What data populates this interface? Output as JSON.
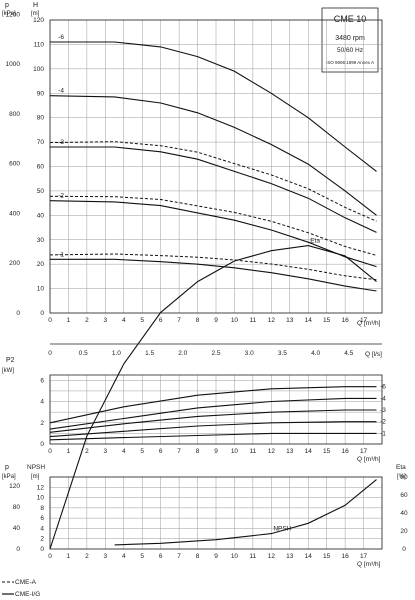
{
  "title_box": {
    "model": "CME 10",
    "speed": "3480 rpm",
    "freq": "50/60 Hz",
    "standard": "ISO 9906:1999 Annex A"
  },
  "axes": {
    "p_unit_top": "p",
    "p_unit_bottom": "[kPa]",
    "h_unit_top": "H",
    "h_unit_bottom": "[m]",
    "q_m3h": "Q [m³/h]",
    "q_ls": "Q [l/s]",
    "p2_top": "P2",
    "p2_bottom": "[kW]",
    "npsh_p_top": "p",
    "npsh_p_bottom": "[kPa]",
    "npsh_top": "NPSH",
    "npsh_bottom": "[m]",
    "eta_top": "Eta",
    "eta_bottom": "[%]"
  },
  "legend": {
    "dashed": "CME-A",
    "solid": "CME-I/G"
  },
  "labels": {
    "eta_curve": "Eta",
    "npsh_curve": "NPSH"
  },
  "ticks": {
    "q_m3h": [
      "0",
      "1",
      "2",
      "3",
      "4",
      "5",
      "6",
      "7",
      "8",
      "9",
      "10",
      "11",
      "12",
      "13",
      "14",
      "15",
      "16",
      "17"
    ],
    "q_ls": [
      "0",
      "0.5",
      "1.0",
      "1.5",
      "2.0",
      "2.5",
      "3.0",
      "3.5",
      "4.0",
      "4.5"
    ],
    "h_m": [
      "0",
      "10",
      "20",
      "30",
      "40",
      "50",
      "60",
      "70",
      "80",
      "90",
      "100",
      "110",
      "120"
    ],
    "p_kpa": [
      "0",
      "200",
      "400",
      "600",
      "800",
      "1000",
      "1200"
    ],
    "p2_kw": [
      "0",
      "2",
      "4",
      "6"
    ],
    "npsh_m": [
      "0",
      "2",
      "4",
      "6",
      "8",
      "10",
      "12"
    ],
    "npsh_p_kpa": [
      "0",
      "40",
      "80",
      "120"
    ],
    "eta_pct": [
      "0",
      "20",
      "40",
      "60",
      "80"
    ]
  },
  "chart_data": [
    {
      "type": "line",
      "title": "CME 10",
      "xlabel": "Q [m³/h]",
      "ylabel": "H [m]",
      "xlim": [
        0,
        18
      ],
      "ylim": [
        0,
        120
      ],
      "grid": true,
      "series": [
        {
          "name": "-6",
          "x": [
            0,
            3.5,
            6,
            8,
            10,
            12,
            14,
            16,
            17.7
          ],
          "y": [
            111,
            111,
            109,
            105,
            99,
            90,
            80,
            68,
            58
          ]
        },
        {
          "name": "-4",
          "x": [
            0,
            3.5,
            6,
            8,
            10,
            12,
            14,
            16,
            17.7
          ],
          "y": [
            89,
            88.5,
            86,
            82,
            76,
            69,
            61,
            50,
            40
          ]
        },
        {
          "name": "-3",
          "x": [
            0,
            3.5,
            6,
            8,
            10,
            12,
            14,
            16,
            17.7
          ],
          "y": [
            68,
            68,
            66,
            63,
            58,
            53,
            47,
            39,
            33
          ]
        },
        {
          "name": "-2",
          "x": [
            0,
            3.5,
            6,
            8,
            10,
            12,
            14,
            16,
            17.7
          ],
          "y": [
            46,
            45.5,
            44,
            41,
            38,
            34,
            29,
            23,
            19
          ]
        },
        {
          "name": "-1",
          "x": [
            0,
            3.5,
            6,
            8,
            10,
            12,
            14,
            16,
            17.7
          ],
          "y": [
            22,
            22,
            21,
            20,
            18.5,
            16.5,
            14,
            11,
            9
          ]
        }
      ]
    },
    {
      "type": "line",
      "xlabel": "Q [m³/h]",
      "ylabel": "P2 [kW]",
      "xlim": [
        0,
        18
      ],
      "ylim": [
        0,
        6.5
      ],
      "grid": true,
      "series": [
        {
          "name": "-6",
          "x": [
            0,
            4,
            8,
            12,
            16,
            17.7
          ],
          "y": [
            2.0,
            3.5,
            4.6,
            5.2,
            5.4,
            5.4
          ]
        },
        {
          "name": "-4",
          "x": [
            0,
            4,
            8,
            12,
            16,
            17.7
          ],
          "y": [
            1.4,
            2.4,
            3.4,
            4.0,
            4.3,
            4.3
          ]
        },
        {
          "name": "-3",
          "x": [
            0,
            4,
            8,
            12,
            16,
            17.7
          ],
          "y": [
            1.1,
            1.9,
            2.6,
            3.0,
            3.2,
            3.2
          ]
        },
        {
          "name": "-2",
          "x": [
            0,
            4,
            8,
            12,
            16,
            17.7
          ],
          "y": [
            0.7,
            1.2,
            1.7,
            2.0,
            2.1,
            2.1
          ]
        },
        {
          "name": "-1",
          "x": [
            0,
            4,
            8,
            12,
            16,
            17.7
          ],
          "y": [
            0.4,
            0.6,
            0.8,
            1.0,
            1.0,
            1.0
          ]
        }
      ]
    },
    {
      "type": "line",
      "xlabel": "Q [m³/h]",
      "ylabel": "NPSH [m]",
      "xlim": [
        0,
        18
      ],
      "ylim": [
        0,
        14
      ],
      "grid": true,
      "series": [
        {
          "name": "NPSH",
          "x": [
            3.5,
            6,
            9,
            12,
            14,
            16,
            17.7
          ],
          "y": [
            0.8,
            1.1,
            1.8,
            3.0,
            5.0,
            8.5,
            13.5
          ]
        },
        {
          "name": "Eta",
          "x": [
            0,
            2,
            4,
            6,
            8,
            10,
            12,
            14,
            16,
            17.7
          ],
          "y": [
            0,
            22,
            36,
            46,
            52,
            56,
            58,
            59,
            57,
            52
          ]
        }
      ]
    }
  ]
}
